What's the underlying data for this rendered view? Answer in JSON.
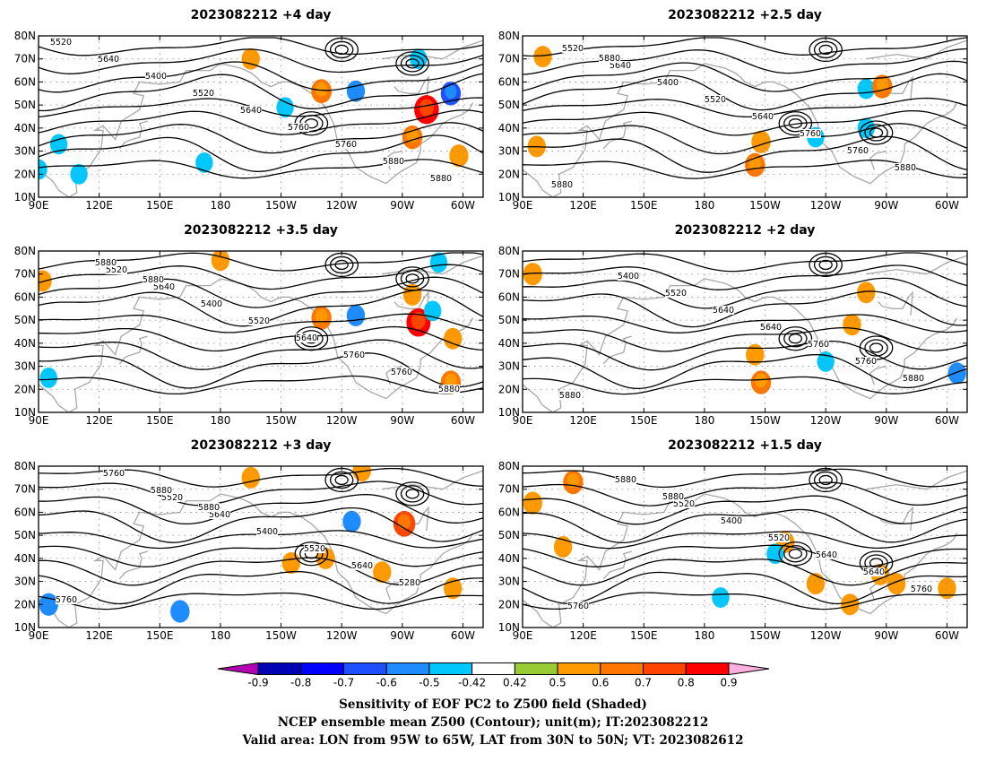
{
  "panels": [
    {
      "id": "p1",
      "title": "2023082212  +4 day",
      "contour_labels": [
        "5520",
        "5640",
        "5400",
        "5520",
        "5640",
        "5760",
        "5760",
        "5880",
        "5880"
      ],
      "shading": [
        {
          "lon": -165,
          "lat": 70,
          "v": 0.5
        },
        {
          "lon": -82,
          "lat": 70,
          "v": -0.45
        },
        {
          "lon": -113,
          "lat": 56,
          "v": -0.5
        },
        {
          "lon": -130,
          "lat": 56,
          "v": 0.62
        },
        {
          "lon": -78,
          "lat": 48,
          "v": 0.85
        },
        {
          "lon": -85,
          "lat": 36,
          "v": 0.6
        },
        {
          "lon": -66,
          "lat": 55,
          "v": -0.6
        },
        {
          "lon": -62,
          "lat": 28,
          "v": 0.55
        },
        {
          "lon": -148,
          "lat": 49,
          "v": -0.45
        },
        {
          "lon": 100,
          "lat": 33,
          "v": -0.45
        },
        {
          "lon": 110,
          "lat": 20,
          "v": -0.45
        },
        {
          "lon": 172,
          "lat": 25,
          "v": -0.45
        },
        {
          "lon": 90,
          "lat": 22,
          "v": -0.45
        }
      ]
    },
    {
      "id": "p2",
      "title": "2023082212  +2.5 day",
      "contour_labels": [
        "5520",
        "5640",
        "5400",
        "5520",
        "5640",
        "5760",
        "5760",
        "5880",
        "5880",
        "5880"
      ],
      "shading": [
        {
          "lon": 100,
          "lat": 71,
          "v": 0.5
        },
        {
          "lon": -152,
          "lat": 34,
          "v": 0.55
        },
        {
          "lon": -155,
          "lat": 24,
          "v": 0.6
        },
        {
          "lon": -100,
          "lat": 57,
          "v": -0.45
        },
        {
          "lon": -92,
          "lat": 58,
          "v": 0.6
        },
        {
          "lon": -100,
          "lat": 40,
          "v": -0.45
        },
        {
          "lon": -125,
          "lat": 36,
          "v": -0.45
        },
        {
          "lon": 97,
          "lat": 32,
          "v": 0.5
        }
      ]
    },
    {
      "id": "p3",
      "title": "2023082212  +3.5 day",
      "contour_labels": [
        "5520",
        "5640",
        "5400",
        "5520",
        "5640",
        "5760",
        "5760",
        "5880",
        "5880",
        "5880"
      ],
      "shading": [
        {
          "lon": -180,
          "lat": 76,
          "v": 0.5
        },
        {
          "lon": 92,
          "lat": 67,
          "v": 0.5
        },
        {
          "lon": -113,
          "lat": 52,
          "v": -0.5
        },
        {
          "lon": -130,
          "lat": 51,
          "v": 0.6
        },
        {
          "lon": -82,
          "lat": 49,
          "v": 0.82
        },
        {
          "lon": -72,
          "lat": 75,
          "v": -0.45
        },
        {
          "lon": -65,
          "lat": 42,
          "v": 0.5
        },
        {
          "lon": -66,
          "lat": 23,
          "v": 0.6
        },
        {
          "lon": 95,
          "lat": 25,
          "v": -0.45
        },
        {
          "lon": -75,
          "lat": 54,
          "v": -0.45
        },
        {
          "lon": -85,
          "lat": 61,
          "v": 0.5
        }
      ]
    },
    {
      "id": "p4",
      "title": "2023082212  +2 day",
      "contour_labels": [
        "5400",
        "5520",
        "5640",
        "5640",
        "5760",
        "5760",
        "5880",
        "5880"
      ],
      "shading": [
        {
          "lon": 95,
          "lat": 70,
          "v": 0.55
        },
        {
          "lon": -155,
          "lat": 35,
          "v": 0.5
        },
        {
          "lon": -152,
          "lat": 23,
          "v": 0.6
        },
        {
          "lon": -55,
          "lat": 27,
          "v": -0.5
        },
        {
          "lon": -107,
          "lat": 48,
          "v": 0.5
        },
        {
          "lon": -120,
          "lat": 32,
          "v": -0.45
        },
        {
          "lon": -100,
          "lat": 62,
          "v": 0.5
        }
      ]
    },
    {
      "id": "p5",
      "title": "2023082212  +3 day",
      "contour_labels": [
        "5520",
        "5640",
        "5400",
        "5520",
        "5640",
        "5280",
        "5760",
        "5760",
        "5880",
        "5880"
      ],
      "shading": [
        {
          "lon": -165,
          "lat": 75,
          "v": 0.5
        },
        {
          "lon": -110,
          "lat": 78,
          "v": 0.5
        },
        {
          "lon": -89,
          "lat": 55,
          "v": 0.7
        },
        {
          "lon": -115,
          "lat": 56,
          "v": -0.5
        },
        {
          "lon": 95,
          "lat": 20,
          "v": -0.55
        },
        {
          "lon": 160,
          "lat": 17,
          "v": -0.55
        },
        {
          "lon": -145,
          "lat": 38,
          "v": 0.5
        },
        {
          "lon": -65,
          "lat": 27,
          "v": 0.5
        },
        {
          "lon": -100,
          "lat": 34,
          "v": 0.5
        },
        {
          "lon": -128,
          "lat": 40,
          "v": 0.5
        }
      ]
    },
    {
      "id": "p6",
      "title": "2023082212  +1.5 day",
      "contour_labels": [
        "5520",
        "5400",
        "5520",
        "5640",
        "5640",
        "5760",
        "5760",
        "5880",
        "5880"
      ],
      "shading": [
        {
          "lon": 95,
          "lat": 64,
          "v": 0.55
        },
        {
          "lon": 115,
          "lat": 73,
          "v": 0.6
        },
        {
          "lon": 110,
          "lat": 45,
          "v": 0.5
        },
        {
          "lon": -140,
          "lat": 47,
          "v": 0.5
        },
        {
          "lon": -145,
          "lat": 42,
          "v": -0.45
        },
        {
          "lon": -172,
          "lat": 23,
          "v": -0.45
        },
        {
          "lon": -108,
          "lat": 20,
          "v": 0.5
        },
        {
          "lon": -85,
          "lat": 29,
          "v": 0.5
        },
        {
          "lon": -93,
          "lat": 33,
          "v": 0.5
        },
        {
          "lon": -60,
          "lat": 27,
          "v": 0.5
        },
        {
          "lon": -125,
          "lat": 29,
          "v": 0.5
        }
      ]
    }
  ],
  "axes": {
    "lon_min": 90,
    "lon_max": 310,
    "lat_min": 10,
    "lat_max": 80,
    "lat_ticks": [
      {
        "v": 80,
        "label": "80N"
      },
      {
        "v": 70,
        "label": "70N"
      },
      {
        "v": 60,
        "label": "60N"
      },
      {
        "v": 50,
        "label": "50N"
      },
      {
        "v": 40,
        "label": "40N"
      },
      {
        "v": 30,
        "label": "30N"
      },
      {
        "v": 20,
        "label": "20N"
      },
      {
        "v": 10,
        "label": "10N"
      }
    ],
    "lon_ticks": [
      {
        "v": 90,
        "label": "90E"
      },
      {
        "v": 120,
        "label": "120E"
      },
      {
        "v": 150,
        "label": "150E"
      },
      {
        "v": 180,
        "label": "180"
      },
      {
        "v": 210,
        "label": "150W"
      },
      {
        "v": 240,
        "label": "120W"
      },
      {
        "v": 270,
        "label": "90W"
      },
      {
        "v": 300,
        "label": "60W"
      }
    ]
  },
  "colorbar": {
    "labels": [
      "-0.9",
      "-0.8",
      "-0.7",
      "-0.6",
      "-0.5",
      "-0.42",
      "0.42",
      "0.5",
      "0.6",
      "0.7",
      "0.8",
      "0.9"
    ],
    "colors": [
      "#b400b4",
      "#0000b4",
      "#0000ff",
      "#1e50ff",
      "#1e8cff",
      "#00c8ff",
      "#ffffff",
      "#99cc33",
      "#ff9900",
      "#ff7700",
      "#ff4400",
      "#ff0000",
      "#ffb0e0"
    ]
  },
  "caption": {
    "line1": "Sensitivity of EOF PC2 to Z500 field (Shaded)",
    "line2": "NCEP ensemble mean Z500 (Contour); unit(m); IT:2023082212",
    "line3": "Valid area: LON from 95W to 65W, LAT from 30N to 50N; VT: 2023082612"
  },
  "colors": {
    "contour": "#000000",
    "coast": "#a8a8a8",
    "grid": "#888888"
  }
}
